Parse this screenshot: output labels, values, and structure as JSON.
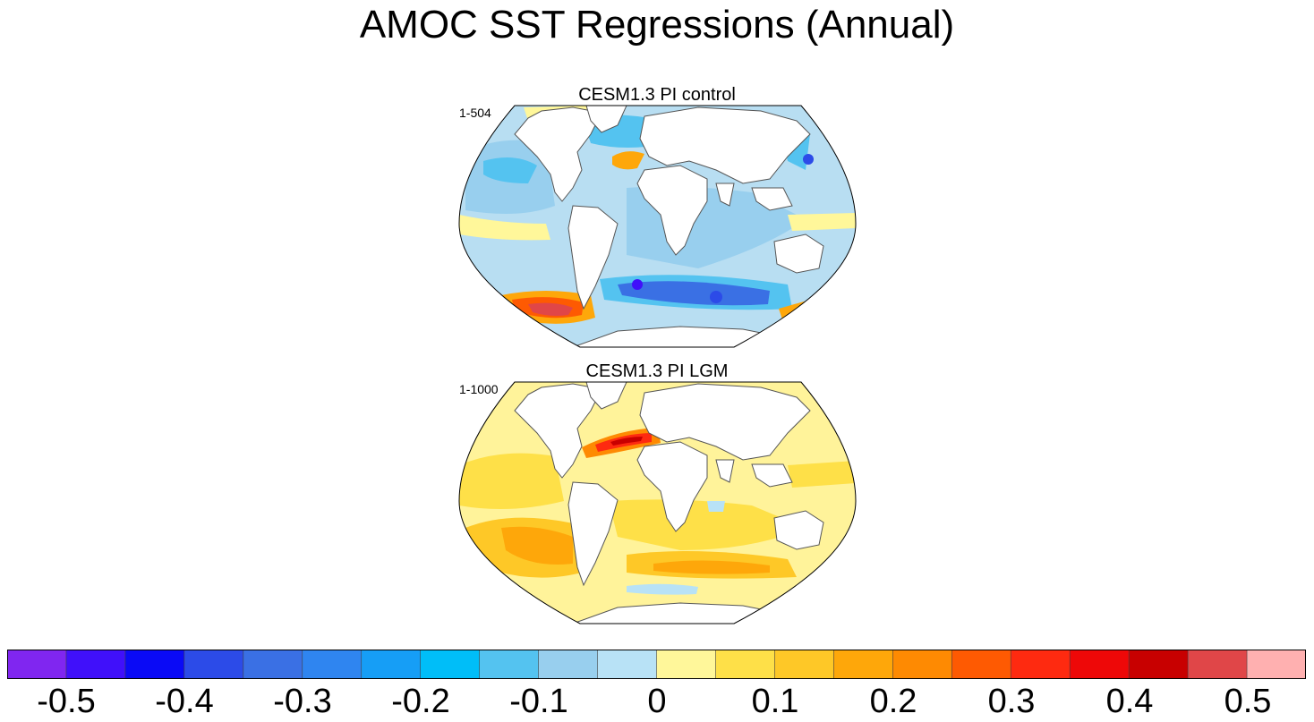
{
  "title": "AMOC SST Regressions (Annual)",
  "panels": [
    {
      "id": "pi-control",
      "title": "CESM1.3 PI control",
      "years": "1-504",
      "ocean_fill": "#b8def2"
    },
    {
      "id": "pi-lgm",
      "title": "CESM1.3 PI LGM",
      "years": "1-1000",
      "ocean_fill": "#fff39a"
    }
  ],
  "colorbar": {
    "colors": [
      "#8026f0",
      "#4010fa",
      "#0a0af6",
      "#2c4be8",
      "#3a70e4",
      "#2f85f0",
      "#169ef6",
      "#00bef8",
      "#54c3f0",
      "#98cfee",
      "#b8e2f6",
      "#fff79a",
      "#fee048",
      "#fec827",
      "#fea70a",
      "#fe8a02",
      "#fe5a02",
      "#fe2a10",
      "#ee0808",
      "#c80000",
      "#e04648",
      "#ffb0b0"
    ],
    "labels": [
      "-0.5",
      "-0.4",
      "-0.3",
      "-0.2",
      "-0.1",
      "0",
      "0.1",
      "0.2",
      "0.3",
      "0.4",
      "0.5"
    ]
  }
}
